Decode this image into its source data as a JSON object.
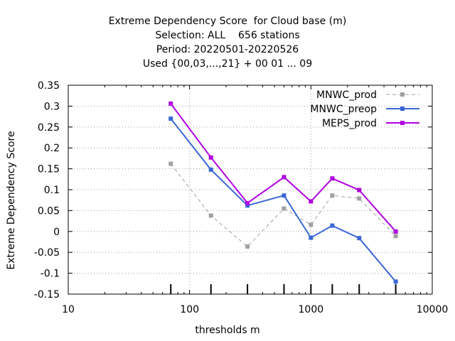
{
  "chart_data": {
    "type": "line",
    "title_lines": [
      "Extreme Dependency Score  for Cloud base (m)",
      "Selection: ALL    656 stations",
      "Period: 20220501-20220526",
      "Used {00,03,...,21} + 00 01 ... 09"
    ],
    "xlabel": "thresholds m",
    "ylabel": "Extreme Dependency Score",
    "x_scale": "log",
    "xlim": [
      10,
      10000
    ],
    "ylim": [
      -0.15,
      0.35
    ],
    "x_ticks": [
      10,
      100,
      1000,
      10000
    ],
    "x_tick_labels": [
      "10",
      "100",
      "1000",
      "10000"
    ],
    "y_ticks": [
      -0.15,
      -0.1,
      -0.05,
      0,
      0.05,
      0.1,
      0.15,
      0.2,
      0.25,
      0.3,
      0.35
    ],
    "y_tick_labels": [
      "-0.15",
      "-0.1",
      "-0.05",
      "0",
      "0.05",
      "0.1",
      "0.15",
      "0.2",
      "0.25",
      "0.3",
      "0.35"
    ],
    "grid": true,
    "legend_position": "top-right",
    "x": [
      70,
      150,
      300,
      600,
      1000,
      1500,
      2500,
      5000
    ],
    "series": [
      {
        "name": "MNWC_prod",
        "color": "#a0a0a0",
        "dashed": true,
        "values": [
          0.162,
          0.038,
          -0.036,
          0.055,
          0.016,
          0.086,
          0.079,
          -0.011
        ]
      },
      {
        "name": "MNWC_preop",
        "color": "#3a66d6",
        "dashed": false,
        "values": [
          0.27,
          0.148,
          0.062,
          0.086,
          -0.015,
          0.014,
          -0.016,
          -0.12
        ]
      },
      {
        "name": "MEPS_prod",
        "color": "#b000e0",
        "dashed": false,
        "values": [
          0.306,
          0.177,
          0.068,
          0.13,
          0.072,
          0.127,
          0.099,
          0.0
        ]
      }
    ]
  }
}
